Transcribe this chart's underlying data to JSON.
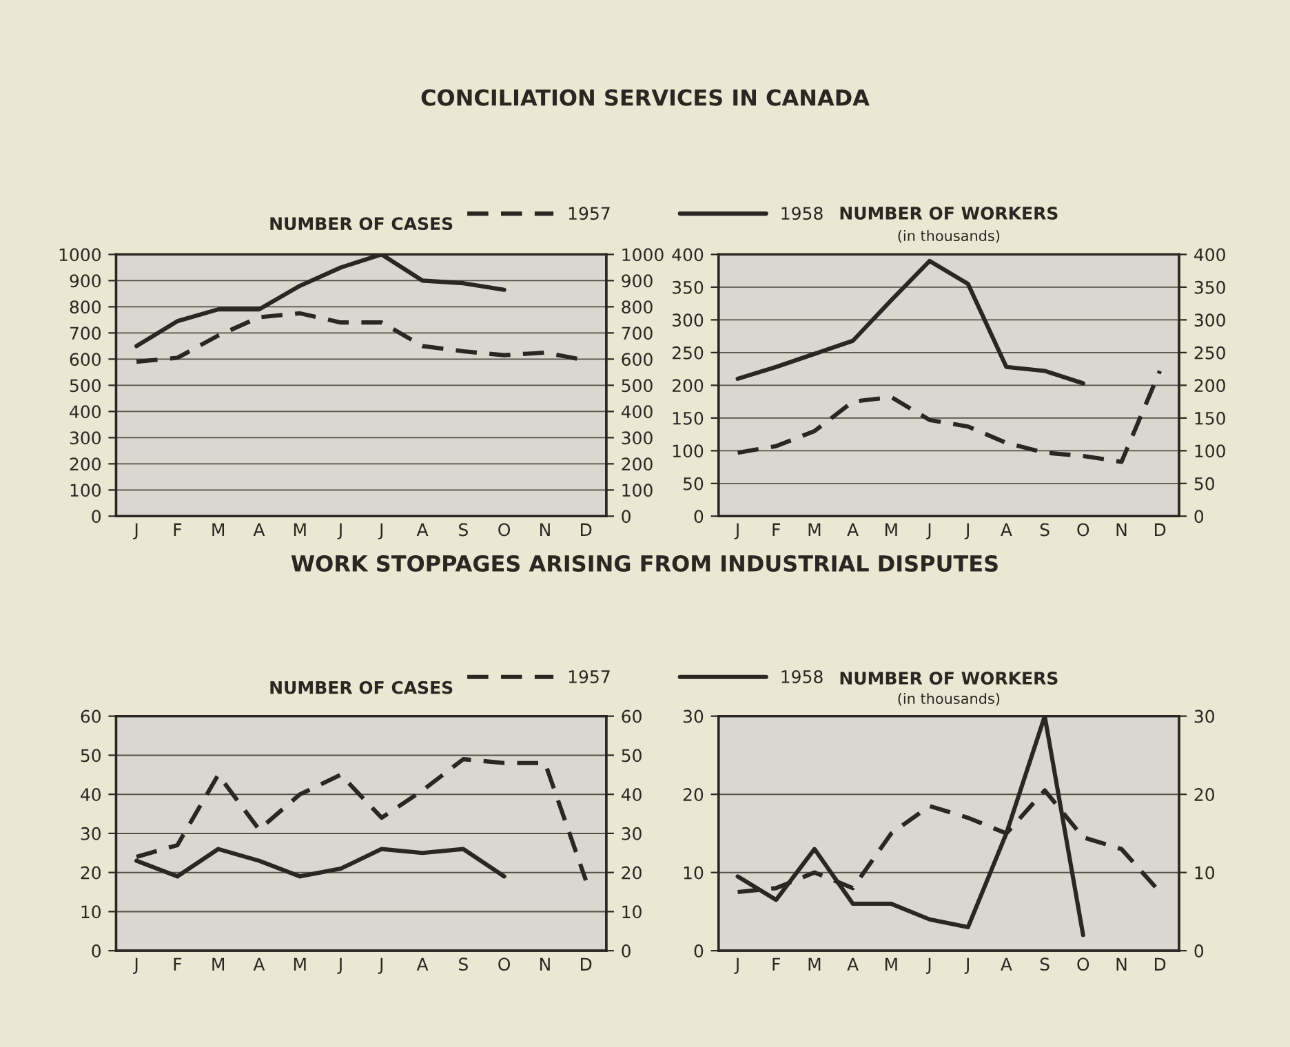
{
  "chart_data": [
    {
      "type": "line",
      "title": "NUMBER OF CASES",
      "annotations": [
        "CONCILIATION SERVICES IN CANADA"
      ],
      "categories": [
        "J",
        "F",
        "M",
        "A",
        "M",
        "J",
        "J",
        "A",
        "S",
        "O",
        "N",
        "D"
      ],
      "ylim": [
        0,
        1000
      ],
      "yticks": [
        0,
        100,
        200,
        300,
        400,
        500,
        600,
        700,
        800,
        900,
        1000
      ],
      "y2lim": [
        0,
        1000
      ],
      "y2ticks": [
        0,
        100,
        200,
        300,
        400,
        500,
        600,
        700,
        800,
        900,
        1000
      ],
      "grid": "y",
      "legend": "top right",
      "series": [
        {
          "name": "1957",
          "color": "#2a2622",
          "line_style": "dashed",
          "values": [
            590,
            605,
            690,
            760,
            775,
            740,
            740,
            650,
            630,
            615,
            625,
            595
          ]
        },
        {
          "name": "1958",
          "color": "#2a2622",
          "line_style": "solid",
          "values": [
            650,
            745,
            790,
            790,
            880,
            950,
            1000,
            900,
            890,
            865,
            null,
            null
          ]
        }
      ]
    },
    {
      "type": "line",
      "title": "NUMBER OF WORKERS",
      "subtitle": "(in thousands)",
      "categories": [
        "J",
        "F",
        "M",
        "A",
        "M",
        "J",
        "J",
        "A",
        "S",
        "O",
        "N",
        "D"
      ],
      "ylim": [
        0,
        400
      ],
      "yticks": [
        0,
        50,
        100,
        150,
        200,
        250,
        300,
        350,
        400
      ],
      "y2lim": [
        0,
        400
      ],
      "y2ticks": [
        0,
        50,
        100,
        150,
        200,
        250,
        300,
        350,
        400
      ],
      "grid": "y",
      "series": [
        {
          "color": "#2a2622",
          "line_style": "dashed",
          "values": [
            97,
            107,
            130,
            175,
            182,
            147,
            137,
            112,
            97,
            92,
            83,
            222
          ]
        },
        {
          "color": "#2a2622",
          "line_style": "solid",
          "values": [
            210,
            228,
            248,
            268,
            330,
            390,
            355,
            228,
            222,
            203,
            null,
            null
          ]
        }
      ]
    },
    {
      "type": "line",
      "title": "NUMBER OF CASES",
      "annotations": [
        "WORK STOPPAGES ARISING FROM INDUSTRIAL DISPUTES"
      ],
      "categories": [
        "J",
        "F",
        "M",
        "A",
        "M",
        "J",
        "J",
        "A",
        "S",
        "O",
        "N",
        "D"
      ],
      "ylim": [
        0,
        60
      ],
      "yticks": [
        0,
        10,
        20,
        30,
        40,
        50,
        60
      ],
      "y2lim": [
        0,
        60
      ],
      "y2ticks": [
        0,
        10,
        20,
        30,
        40,
        50,
        60
      ],
      "grid": "y",
      "legend": "top right",
      "series": [
        {
          "name": "1957",
          "color": "#2a2622",
          "line_style": "dashed",
          "values": [
            24,
            27,
            45,
            31,
            40,
            45,
            34,
            41,
            49,
            48,
            48,
            18
          ]
        },
        {
          "name": "1958",
          "color": "#2a2622",
          "line_style": "solid",
          "values": [
            23,
            19,
            26,
            23,
            19,
            21,
            26,
            25,
            26,
            19,
            null,
            null
          ]
        }
      ]
    },
    {
      "type": "line",
      "title": "NUMBER OF WORKERS",
      "subtitle": "(in thousands)",
      "categories": [
        "J",
        "F",
        "M",
        "A",
        "M",
        "J",
        "J",
        "A",
        "S",
        "O",
        "N",
        "D"
      ],
      "ylim": [
        0,
        30
      ],
      "yticks": [
        0,
        10,
        20,
        30
      ],
      "y2lim": [
        0,
        30
      ],
      "y2ticks": [
        0,
        10,
        20,
        30
      ],
      "grid": "y",
      "series": [
        {
          "color": "#2a2622",
          "line_style": "dashed",
          "values": [
            7.5,
            8,
            10,
            8,
            15,
            18.5,
            17,
            15,
            20.5,
            14.5,
            13,
            7.5
          ]
        },
        {
          "color": "#2a2622",
          "line_style": "solid",
          "values": [
            9.5,
            6.5,
            13,
            6,
            6,
            4,
            3,
            15,
            30,
            2,
            null,
            null
          ]
        }
      ]
    }
  ]
}
